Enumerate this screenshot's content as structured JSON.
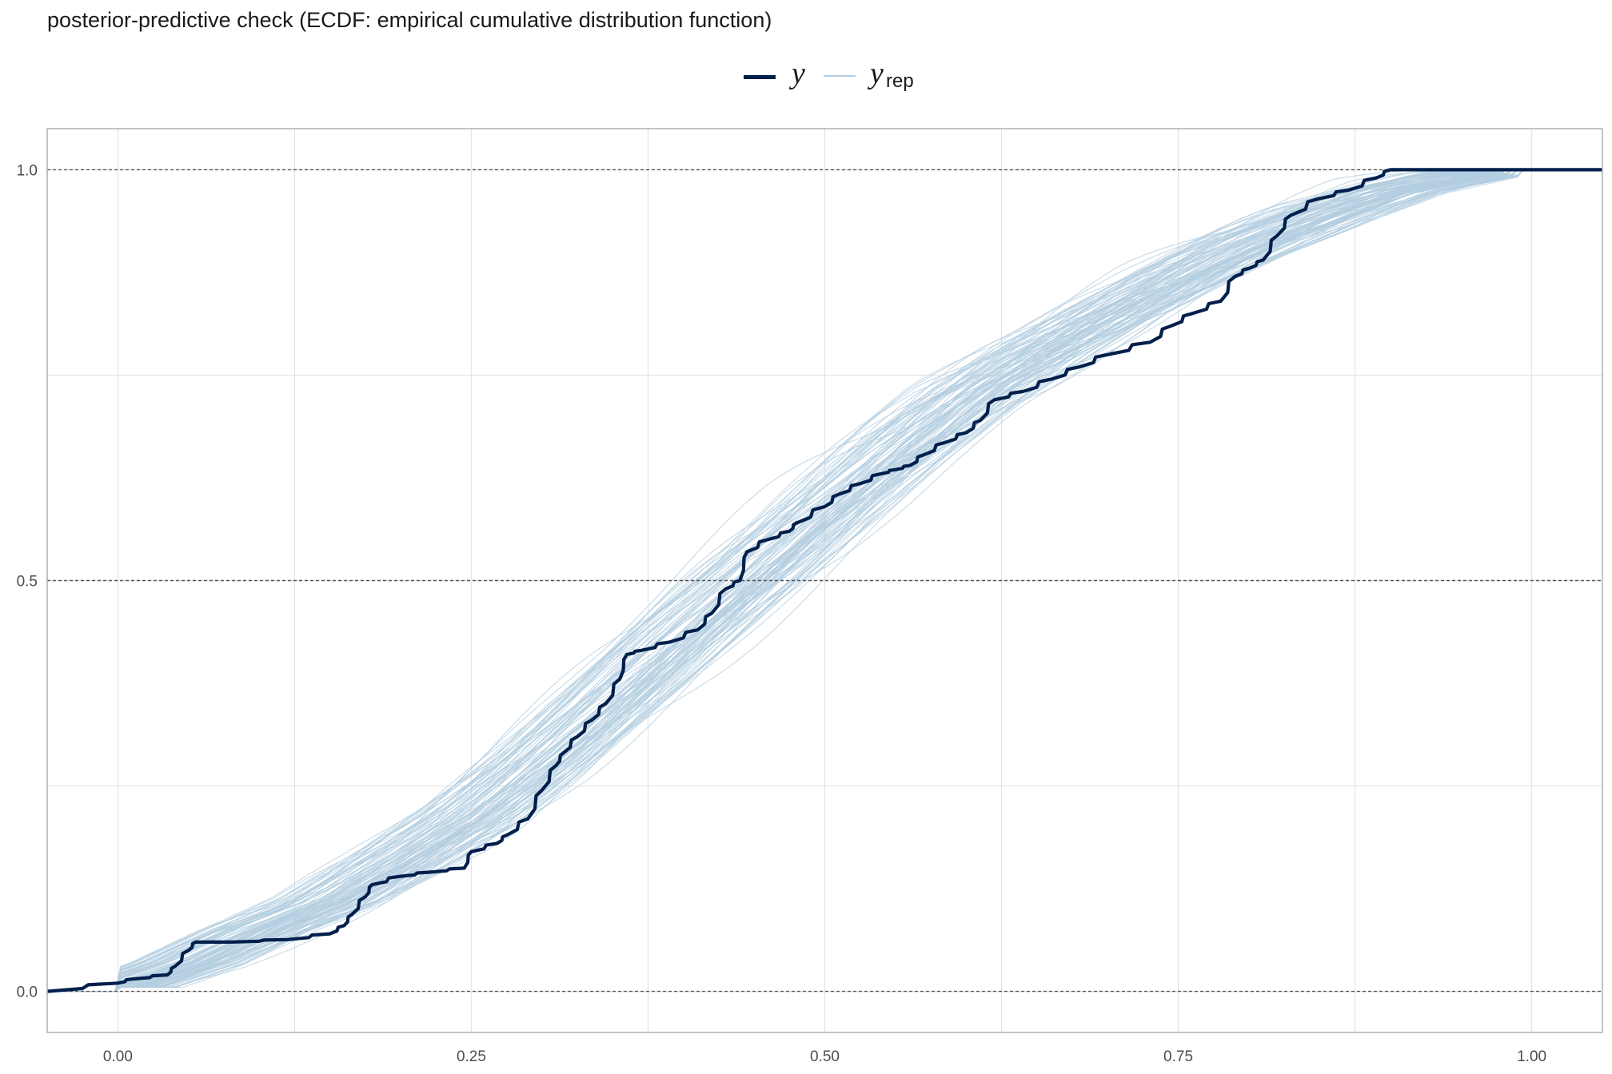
{
  "chart_data": {
    "type": "line",
    "title": "posterior-predictive check (ECDF: empirical cumulative distribution function)",
    "xlabel": "",
    "ylabel": "",
    "xlim": [
      -0.05,
      1.05
    ],
    "ylim": [
      -0.05,
      1.05
    ],
    "x_ticks": [
      "0.00",
      "0.25",
      "0.50",
      "0.75",
      "1.00"
    ],
    "y_ticks": [
      "0.0",
      "0.5",
      "1.0"
    ],
    "reference_lines_y": [
      0,
      0.5,
      1
    ],
    "legend": {
      "position": "top",
      "y_label": "y",
      "yrep_label": "y",
      "yrep_subscript": "rep"
    },
    "colors": {
      "y": "#011f4b",
      "yrep": "#b3cde0",
      "reference": "#555555",
      "grid": "#e4e4e4"
    },
    "yrep_draw_count": 100,
    "series": [
      {
        "name": "y",
        "points": [
          [
            -0.05,
            0
          ],
          [
            0.0,
            0.01
          ],
          [
            0.01,
            0.015
          ],
          [
            0.035,
            0.02
          ],
          [
            0.04,
            0.03
          ],
          [
            0.05,
            0.05
          ],
          [
            0.055,
            0.06
          ],
          [
            0.06,
            0.06
          ],
          [
            0.08,
            0.06
          ],
          [
            0.12,
            0.063
          ],
          [
            0.15,
            0.07
          ],
          [
            0.16,
            0.08
          ],
          [
            0.165,
            0.093
          ],
          [
            0.175,
            0.115
          ],
          [
            0.18,
            0.13
          ],
          [
            0.2,
            0.14
          ],
          [
            0.22,
            0.145
          ],
          [
            0.245,
            0.15
          ],
          [
            0.25,
            0.17
          ],
          [
            0.268,
            0.18
          ],
          [
            0.275,
            0.19
          ],
          [
            0.29,
            0.21
          ],
          [
            0.3,
            0.245
          ],
          [
            0.31,
            0.275
          ],
          [
            0.315,
            0.29
          ],
          [
            0.325,
            0.31
          ],
          [
            0.335,
            0.33
          ],
          [
            0.345,
            0.35
          ],
          [
            0.355,
            0.38
          ],
          [
            0.36,
            0.41
          ],
          [
            0.37,
            0.415
          ],
          [
            0.39,
            0.425
          ],
          [
            0.41,
            0.44
          ],
          [
            0.42,
            0.46
          ],
          [
            0.43,
            0.49
          ],
          [
            0.44,
            0.5
          ],
          [
            0.445,
            0.535
          ],
          [
            0.46,
            0.55
          ],
          [
            0.475,
            0.56
          ],
          [
            0.48,
            0.57
          ],
          [
            0.5,
            0.59
          ],
          [
            0.51,
            0.605
          ],
          [
            0.525,
            0.618
          ],
          [
            0.54,
            0.63
          ],
          [
            0.55,
            0.635
          ],
          [
            0.56,
            0.64
          ],
          [
            0.57,
            0.653
          ],
          [
            0.585,
            0.668
          ],
          [
            0.6,
            0.68
          ],
          [
            0.61,
            0.695
          ],
          [
            0.62,
            0.72
          ],
          [
            0.64,
            0.73
          ],
          [
            0.66,
            0.745
          ],
          [
            0.68,
            0.76
          ],
          [
            0.7,
            0.775
          ],
          [
            0.73,
            0.79
          ],
          [
            0.745,
            0.81
          ],
          [
            0.76,
            0.825
          ],
          [
            0.78,
            0.84
          ],
          [
            0.79,
            0.87
          ],
          [
            0.8,
            0.88
          ],
          [
            0.81,
            0.89
          ],
          [
            0.82,
            0.92
          ],
          [
            0.83,
            0.945
          ],
          [
            0.85,
            0.965
          ],
          [
            0.87,
            0.975
          ],
          [
            0.89,
            0.99
          ],
          [
            0.9,
            1.0
          ],
          [
            1.05,
            1.0
          ]
        ]
      },
      {
        "name": "yrep",
        "mean_points": [
          [
            -0.05,
            0
          ],
          [
            0.0,
            0.005
          ],
          [
            0.05,
            0.035
          ],
          [
            0.1,
            0.075
          ],
          [
            0.15,
            0.11
          ],
          [
            0.2,
            0.16
          ],
          [
            0.25,
            0.215
          ],
          [
            0.3,
            0.285
          ],
          [
            0.35,
            0.36
          ],
          [
            0.4,
            0.435
          ],
          [
            0.45,
            0.51
          ],
          [
            0.5,
            0.585
          ],
          [
            0.55,
            0.655
          ],
          [
            0.6,
            0.72
          ],
          [
            0.65,
            0.775
          ],
          [
            0.7,
            0.825
          ],
          [
            0.75,
            0.87
          ],
          [
            0.8,
            0.91
          ],
          [
            0.85,
            0.945
          ],
          [
            0.9,
            0.975
          ],
          [
            0.95,
            0.992
          ],
          [
            1.0,
            1.0
          ],
          [
            1.05,
            1.0
          ]
        ]
      }
    ]
  }
}
